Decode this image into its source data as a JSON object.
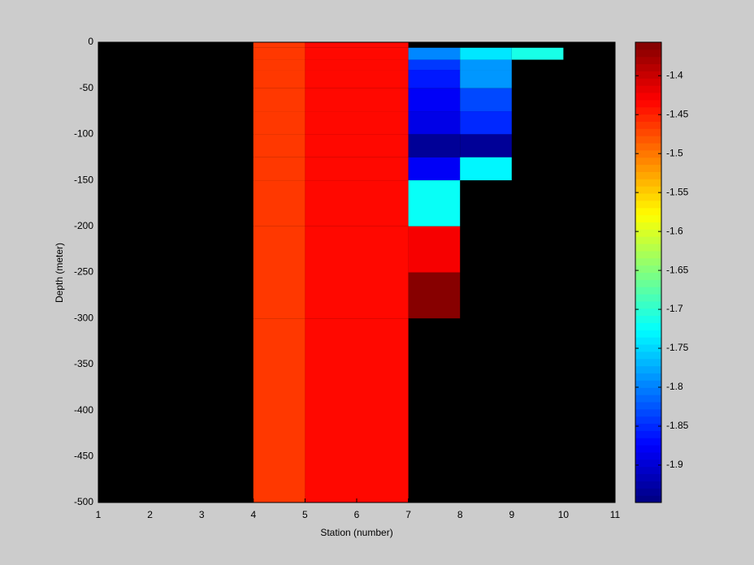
{
  "chart_data": {
    "type": "heatmap",
    "x_label": "Station (number)",
    "y_label": "Depth (meter)",
    "x": [
      1,
      2,
      3,
      4,
      5,
      6,
      7,
      8,
      9,
      10,
      11
    ],
    "y": [
      0,
      -6,
      -19,
      -30,
      -50,
      -75,
      -100,
      -125,
      -150,
      -200,
      -250,
      -300,
      -500
    ],
    "values": [
      [
        null,
        null,
        null,
        -1.46,
        -1.44,
        -1.44,
        null,
        null,
        null,
        null
      ],
      [
        null,
        null,
        null,
        -1.46,
        -1.44,
        -1.44,
        -1.8,
        -1.74,
        -1.71,
        null
      ],
      [
        null,
        null,
        null,
        -1.46,
        -1.44,
        -1.44,
        -1.84,
        -1.79,
        null,
        null
      ],
      [
        null,
        null,
        null,
        -1.46,
        -1.44,
        -1.44,
        -1.86,
        -1.79,
        null,
        null
      ],
      [
        null,
        null,
        null,
        -1.46,
        -1.44,
        -1.44,
        -1.88,
        -1.83,
        null,
        null
      ],
      [
        null,
        null,
        null,
        -1.46,
        -1.44,
        -1.44,
        -1.89,
        -1.85,
        null,
        null
      ],
      [
        null,
        null,
        null,
        -1.46,
        -1.44,
        -1.44,
        -1.93,
        -1.93,
        null,
        null
      ],
      [
        null,
        null,
        null,
        -1.46,
        -1.44,
        -1.44,
        -1.88,
        -1.73,
        null,
        null
      ],
      [
        null,
        null,
        null,
        -1.46,
        -1.44,
        -1.44,
        -1.72,
        null,
        null,
        null
      ],
      [
        null,
        null,
        null,
        -1.46,
        -1.44,
        -1.44,
        -1.43,
        null,
        null,
        null
      ],
      [
        null,
        null,
        null,
        -1.46,
        -1.44,
        -1.44,
        -1.36,
        null,
        null,
        null
      ],
      [
        null,
        null,
        null,
        -1.46,
        -1.44,
        -1.44,
        null,
        null,
        null,
        null
      ]
    ],
    "xlim": [
      1,
      11
    ],
    "xticks": [
      1,
      2,
      3,
      4,
      5,
      6,
      7,
      8,
      9,
      10,
      11
    ],
    "ylim": [
      -500,
      0
    ],
    "yticks": [
      0,
      -50,
      -100,
      -150,
      -200,
      -250,
      -300,
      -350,
      -400,
      -450,
      -500
    ],
    "colormap": "jet",
    "background": "#000000",
    "clim": [
      -1.948,
      -1.357
    ],
    "cticks": [
      -1.4,
      -1.45,
      -1.5,
      -1.55,
      -1.6,
      -1.65,
      -1.7,
      -1.75,
      -1.8,
      -1.85,
      -1.9
    ]
  }
}
